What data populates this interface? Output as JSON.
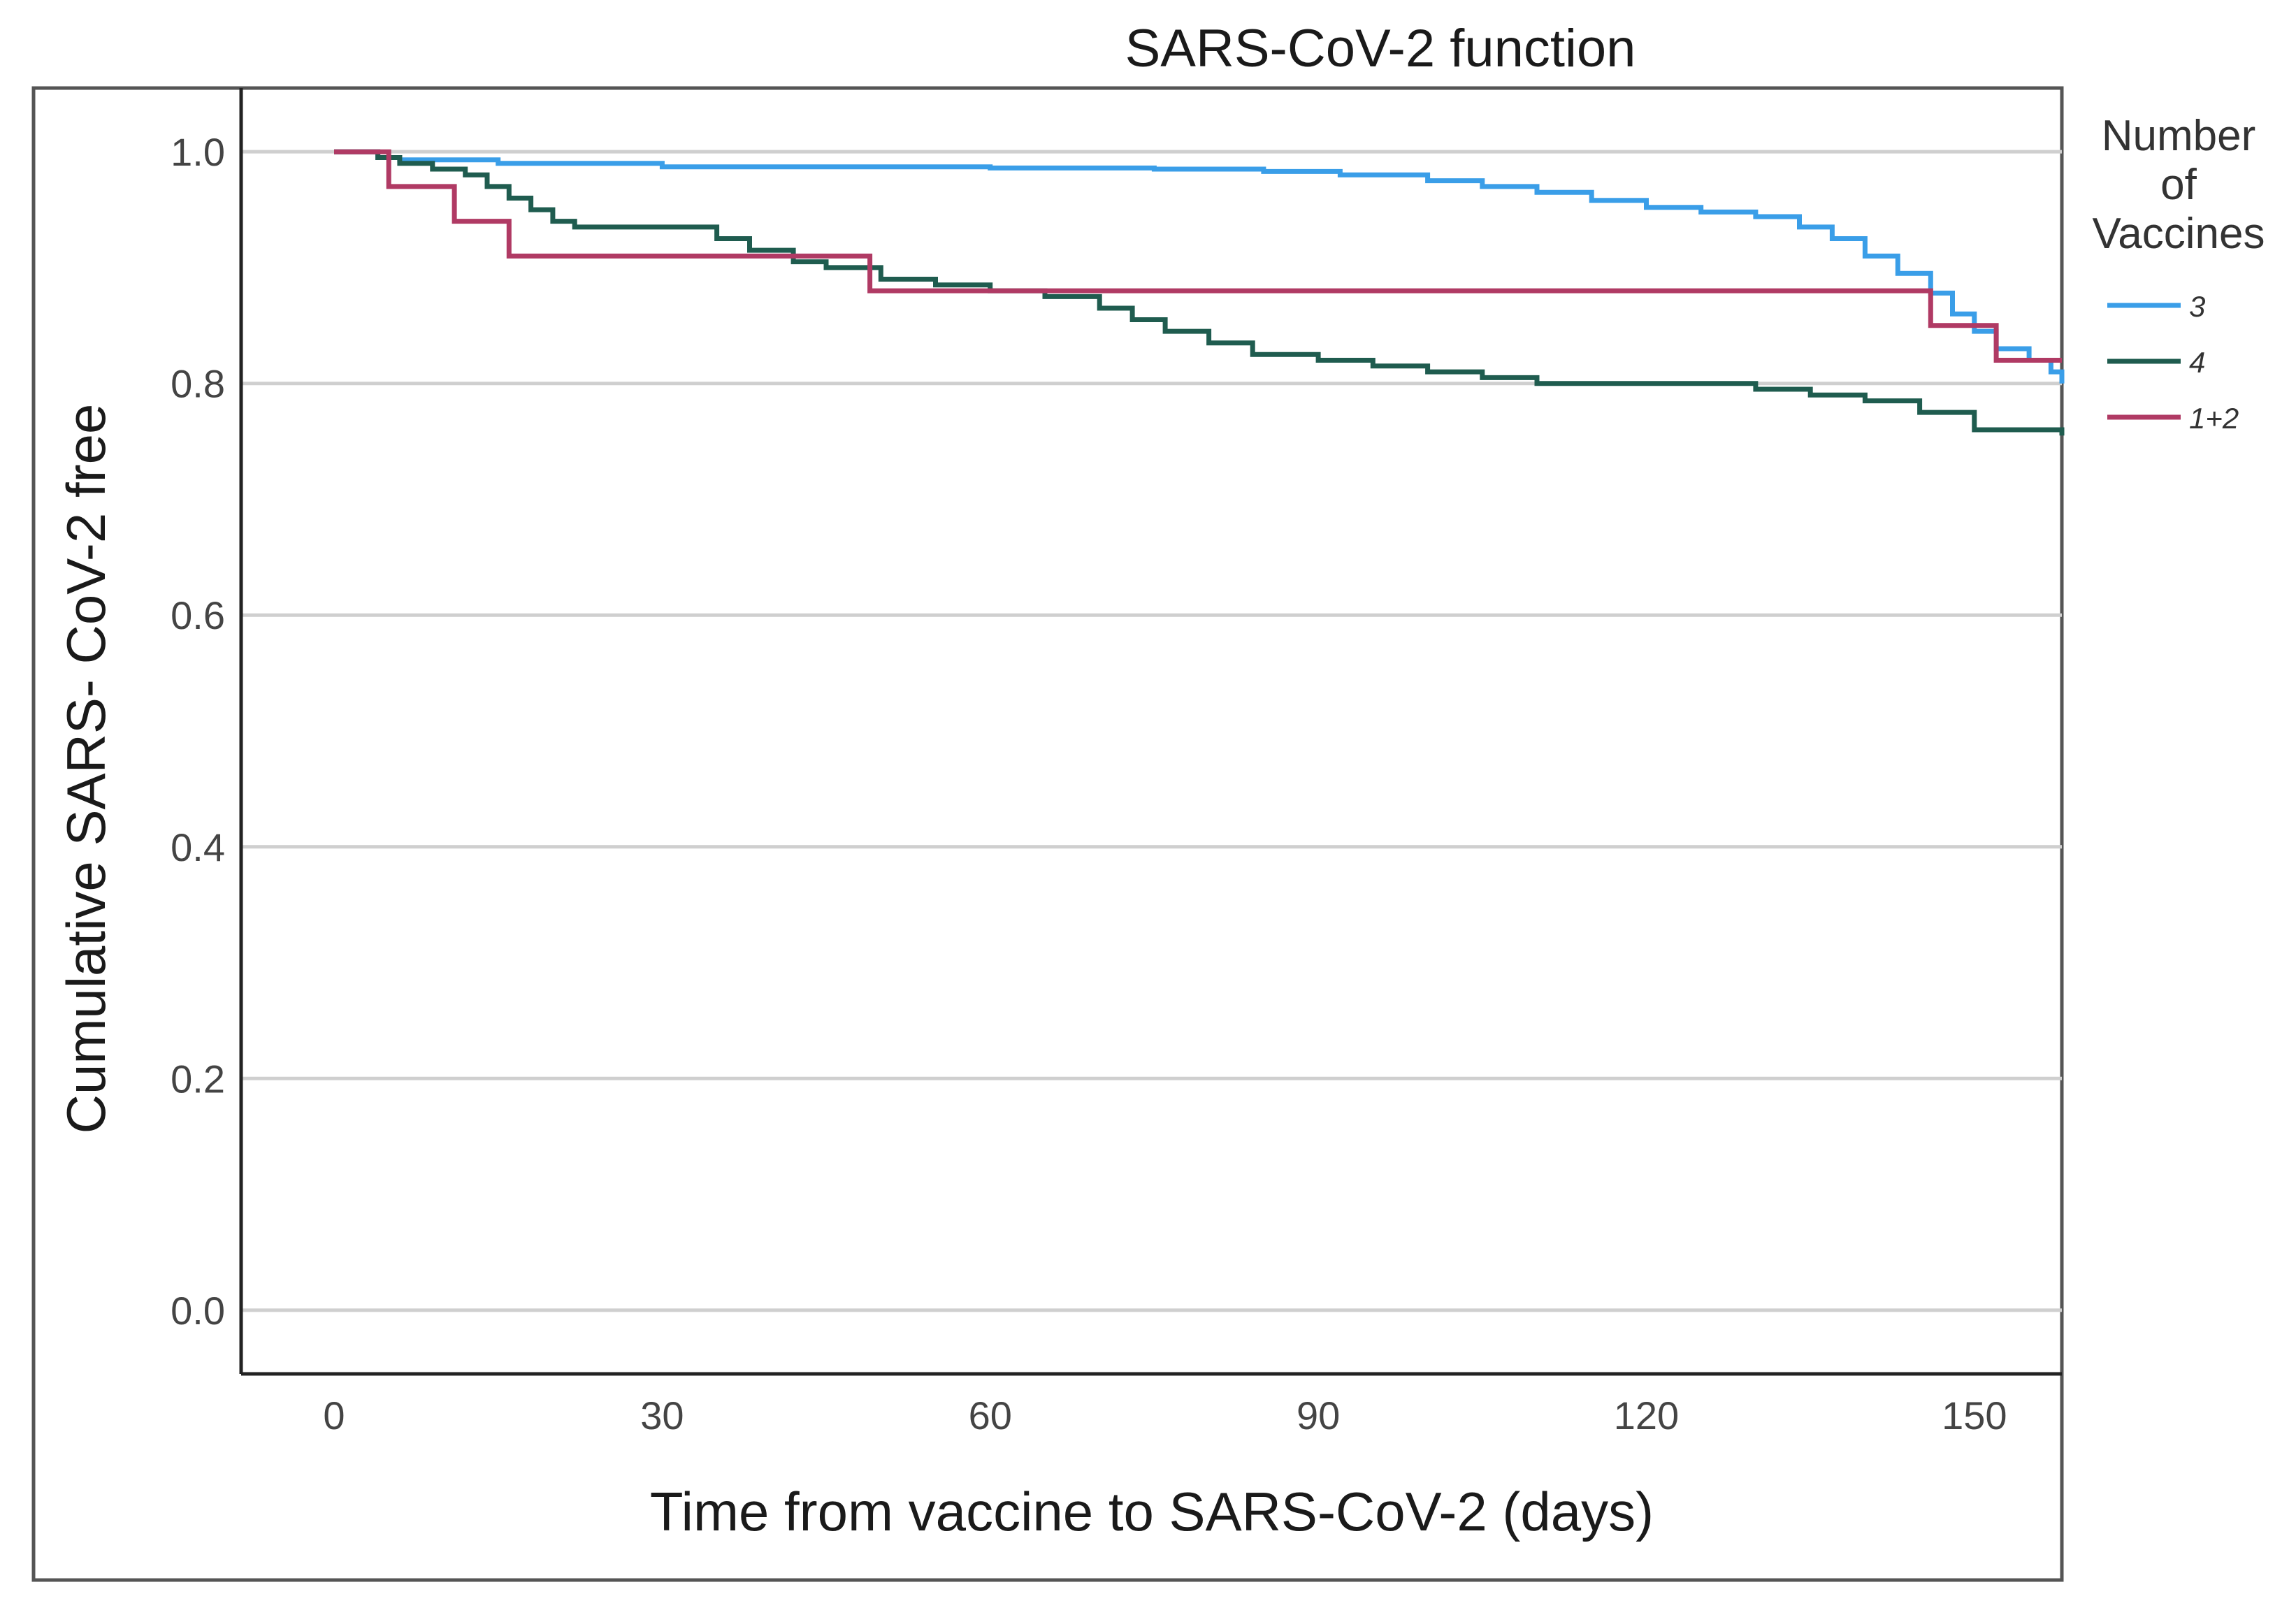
{
  "chart_data": {
    "type": "line",
    "subtype": "kaplan-meier step",
    "title": "SARS-CoV-2 function",
    "xlabel": "Time from vaccine to SARS-CoV-2 (days)",
    "ylabel": "Cumulative SARS- CoV-2 free",
    "xlim": [
      -8.5,
      158
    ],
    "ylim": [
      -0.055,
      1.055
    ],
    "x_ticks": [
      0,
      30,
      60,
      90,
      120,
      150
    ],
    "y_ticks": [
      0.0,
      0.2,
      0.4,
      0.6,
      0.8,
      1.0
    ],
    "y_tick_labels": [
      "0.0",
      "0.2",
      "0.4",
      "0.6",
      "0.8",
      "1.0"
    ],
    "grid": "horizontal",
    "legend": {
      "title": "Number of Vaccines",
      "title_lines": [
        "Number",
        "of",
        "Vaccines"
      ],
      "placement": "right",
      "entries": [
        "3",
        "4",
        "1+2"
      ]
    },
    "series": [
      {
        "name": "3",
        "color": "#3a9ee8",
        "x": [
          0,
          4,
          6,
          15,
          30,
          60,
          75,
          85,
          92,
          100,
          105,
          110,
          115,
          120,
          125,
          130,
          134,
          137,
          140,
          143,
          146,
          148,
          150,
          152,
          155,
          157,
          158
        ],
        "y": [
          1.0,
          0.995,
          0.993,
          0.99,
          0.987,
          0.986,
          0.985,
          0.983,
          0.98,
          0.975,
          0.97,
          0.965,
          0.958,
          0.952,
          0.948,
          0.944,
          0.935,
          0.925,
          0.91,
          0.895,
          0.878,
          0.86,
          0.845,
          0.83,
          0.82,
          0.81,
          0.8
        ]
      },
      {
        "name": "4",
        "color": "#1f5c4f",
        "x": [
          0,
          4,
          6,
          9,
          12,
          14,
          16,
          18,
          20,
          22,
          30,
          35,
          38,
          42,
          45,
          50,
          55,
          60,
          65,
          70,
          73,
          76,
          80,
          84,
          90,
          95,
          100,
          105,
          110,
          125,
          130,
          135,
          140,
          145,
          150,
          158
        ],
        "y": [
          1.0,
          0.995,
          0.99,
          0.985,
          0.98,
          0.97,
          0.96,
          0.95,
          0.94,
          0.935,
          0.935,
          0.925,
          0.915,
          0.905,
          0.9,
          0.89,
          0.885,
          0.88,
          0.875,
          0.865,
          0.855,
          0.845,
          0.835,
          0.825,
          0.82,
          0.815,
          0.81,
          0.805,
          0.8,
          0.8,
          0.795,
          0.79,
          0.785,
          0.775,
          0.76,
          0.755
        ]
      },
      {
        "name": "1+2",
        "color": "#b03a64",
        "x": [
          0,
          5,
          11,
          16,
          49,
          146,
          150,
          152,
          158
        ],
        "y": [
          1.0,
          0.97,
          0.94,
          0.91,
          0.88,
          0.85,
          0.85,
          0.82,
          0.82
        ]
      }
    ]
  }
}
